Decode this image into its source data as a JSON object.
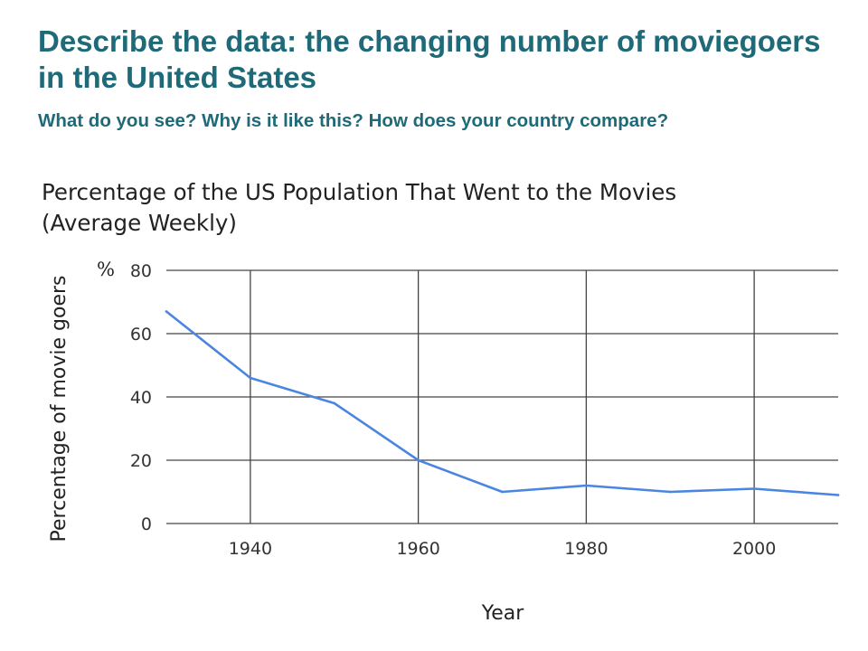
{
  "slide": {
    "title": "Describe the data: the changing number of moviegoers in the United States",
    "subtitle": "What do you see? Why is it like this? How does your country compare?"
  },
  "chart_data": {
    "type": "line",
    "title_line1": "Percentage of the US Population That Went to the Movies",
    "title_line2": "(Average Weekly)",
    "xlabel": "Year",
    "ylabel": "Percentage of movie goers",
    "y_unit": "%",
    "xlim": [
      1930,
      2010
    ],
    "ylim": [
      0,
      80
    ],
    "x_ticks": [
      1940,
      1960,
      1980,
      2000
    ],
    "y_ticks": [
      0,
      20,
      40,
      60,
      80
    ],
    "grid": true,
    "line_color": "#4a86e0",
    "grid_color": "#444444",
    "series": [
      {
        "x": [
          1930,
          1940,
          1950,
          1960,
          1970,
          1980,
          1990,
          2000,
          2010
        ],
        "values": [
          67,
          46,
          38,
          20,
          10,
          12,
          10,
          11,
          9
        ]
      }
    ]
  }
}
